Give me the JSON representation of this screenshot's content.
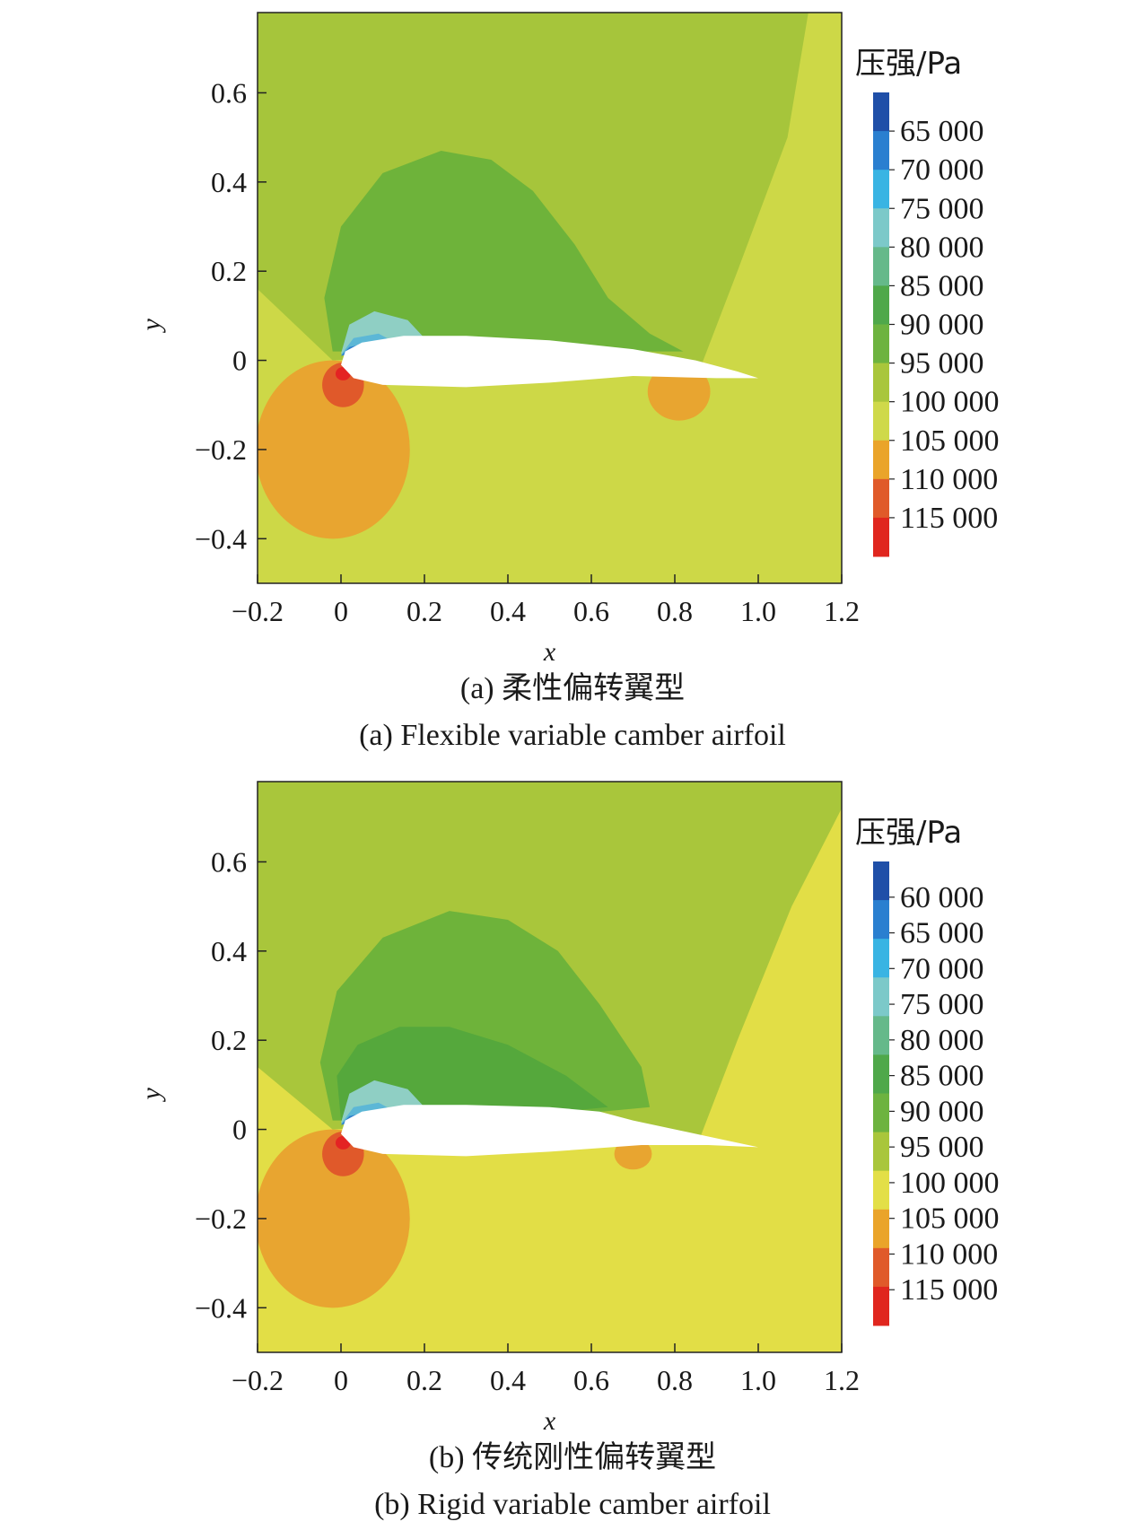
{
  "chart_data": [
    {
      "type": "contour",
      "caption_cn": "(a) 柔性偏转翼型",
      "caption_en": "(a) Flexible variable camber airfoil",
      "xlabel": "x",
      "ylabel": "y",
      "xlim": [
        -0.2,
        1.2
      ],
      "ylim": [
        -0.5,
        0.78
      ],
      "xticks": [
        -0.2,
        0,
        0.2,
        0.4,
        0.6,
        0.8,
        1.0,
        1.2
      ],
      "xtick_labels": [
        "−0.2",
        "0",
        "0.2",
        "0.4",
        "0.6",
        "0.8",
        "1.0",
        "1.2"
      ],
      "yticks": [
        -0.4,
        -0.2,
        0,
        0.2,
        0.4,
        0.6
      ],
      "ytick_labels": [
        "−0.4",
        "−0.2",
        "0",
        "0.2",
        "0.4",
        "0.6"
      ],
      "legend_title": "压强/Pa",
      "legend_levels": [
        "65 000",
        "70 000",
        "75 000",
        "80 000",
        "85 000",
        "90 000",
        "95 000",
        "100 000",
        "105 000",
        "110 000",
        "115 000"
      ],
      "legend_colors": [
        "#1f4fa8",
        "#2a7fd0",
        "#39b4e3",
        "#7cc9c9",
        "#65b98a",
        "#4fa84a",
        "#6db33f",
        "#a9c63b",
        "#cfd94a",
        "#eaa42a",
        "#e05a2a",
        "#e0261e"
      ],
      "colors": {
        "background": "#cdd847",
        "upper": "#a6c53b",
        "suction": "#6eb33a",
        "high": "#e8a530",
        "stag": "#e0592a",
        "peak": "#e42323",
        "airfoil": "#ffffff"
      },
      "airfoil": {
        "leading_edge": [
          0.0,
          -0.01
        ],
        "trailing_edge": [
          1.0,
          -0.04
        ]
      }
    },
    {
      "type": "contour",
      "caption_cn": "(b) 传统刚性偏转翼型",
      "caption_en": "(b) Rigid variable camber airfoil",
      "xlabel": "x",
      "ylabel": "y",
      "xlim": [
        -0.2,
        1.2
      ],
      "ylim": [
        -0.5,
        0.78
      ],
      "xticks": [
        -0.2,
        0,
        0.2,
        0.4,
        0.6,
        0.8,
        1.0,
        1.2
      ],
      "xtick_labels": [
        "−0.2",
        "0",
        "0.2",
        "0.4",
        "0.6",
        "0.8",
        "1.0",
        "1.2"
      ],
      "yticks": [
        -0.4,
        -0.2,
        0,
        0.2,
        0.4,
        0.6
      ],
      "ytick_labels": [
        "−0.4",
        "−0.2",
        "0",
        "0.2",
        "0.4",
        "0.6"
      ],
      "legend_title": "压强/Pa",
      "legend_levels": [
        "60 000",
        "65 000",
        "70 000",
        "75 000",
        "80 000",
        "85 000",
        "90 000",
        "95 000",
        "100 000",
        "105 000",
        "110 000",
        "115 000"
      ],
      "legend_colors": [
        "#1f4fa8",
        "#2a7fd0",
        "#39b4e3",
        "#7cc9c9",
        "#65b98a",
        "#4fa84a",
        "#6db33f",
        "#a9c63b",
        "#e3df47",
        "#eaa42a",
        "#e05a2a",
        "#e0261e"
      ],
      "colors": {
        "background": "#e2de46",
        "upper": "#a9c63b",
        "suction": "#6eb33a",
        "high": "#e8a530",
        "stag": "#e0592a",
        "peak": "#e42323",
        "airfoil": "#ffffff"
      },
      "airfoil": {
        "leading_edge": [
          0.0,
          -0.01
        ],
        "trailing_edge": [
          1.0,
          -0.04
        ]
      }
    }
  ]
}
